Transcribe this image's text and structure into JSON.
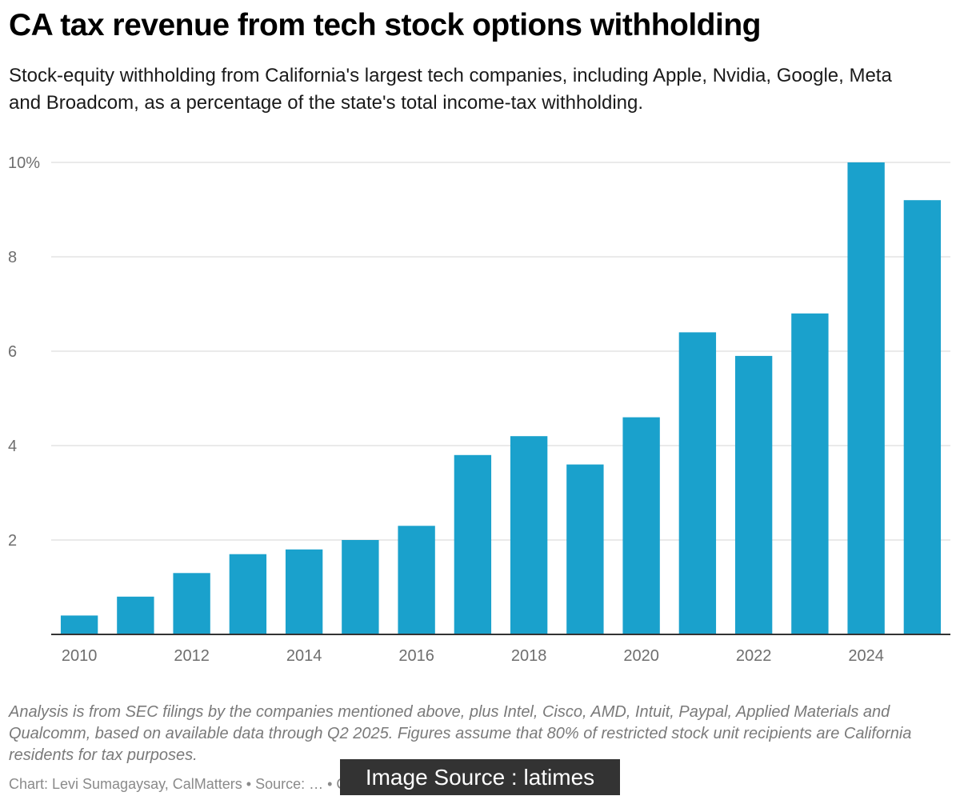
{
  "chart_data": {
    "type": "bar",
    "title": "CA tax revenue from tech stock options withholding",
    "subtitle": "Stock-equity withholding from California's largest tech companies, including Apple, Nvidia, Google, Meta and Broadcom, as a percentage of the state's total income-tax withholding.",
    "categories": [
      "2010",
      "2011",
      "2012",
      "2013",
      "2014",
      "2015",
      "2016",
      "2017",
      "2018",
      "2019",
      "2020",
      "2021",
      "2022",
      "2023",
      "2024",
      "2025"
    ],
    "values": [
      0.4,
      0.8,
      1.3,
      1.7,
      1.8,
      2.0,
      2.3,
      3.8,
      4.2,
      3.6,
      4.6,
      6.4,
      5.9,
      6.8,
      10.0,
      9.2
    ],
    "x_tick_labels": [
      "2010",
      "2012",
      "2014",
      "2016",
      "2018",
      "2020",
      "2022",
      "2024"
    ],
    "y_ticks": [
      {
        "value": 2,
        "label": "2"
      },
      {
        "value": 4,
        "label": "4"
      },
      {
        "value": 6,
        "label": "6"
      },
      {
        "value": 8,
        "label": "8"
      },
      {
        "value": 10,
        "label": "10%"
      }
    ],
    "ylim": [
      0,
      10
    ],
    "xlabel": "",
    "ylabel": "",
    "grid": true,
    "legend": "none",
    "bar_color": "#1aa1cc",
    "grid_color": "#e3e3e3",
    "axis_color": "#333333",
    "tick_label_color": "#6e6e6e"
  },
  "notes": "Analysis is from SEC filings by the companies mentioned above, plus Intel, Cisco, AMD, Intuit, Paypal, Applied Materials and Qualcomm, based on available data through Q2 2025. Figures assume that 80% of restricted stock unit recipients are California residents for tax purposes.",
  "credit": "Chart: Levi Sumagaysay, CalMatters • Source: … • Created with Datawrapper",
  "overlay_label": "Image Source : latimes"
}
